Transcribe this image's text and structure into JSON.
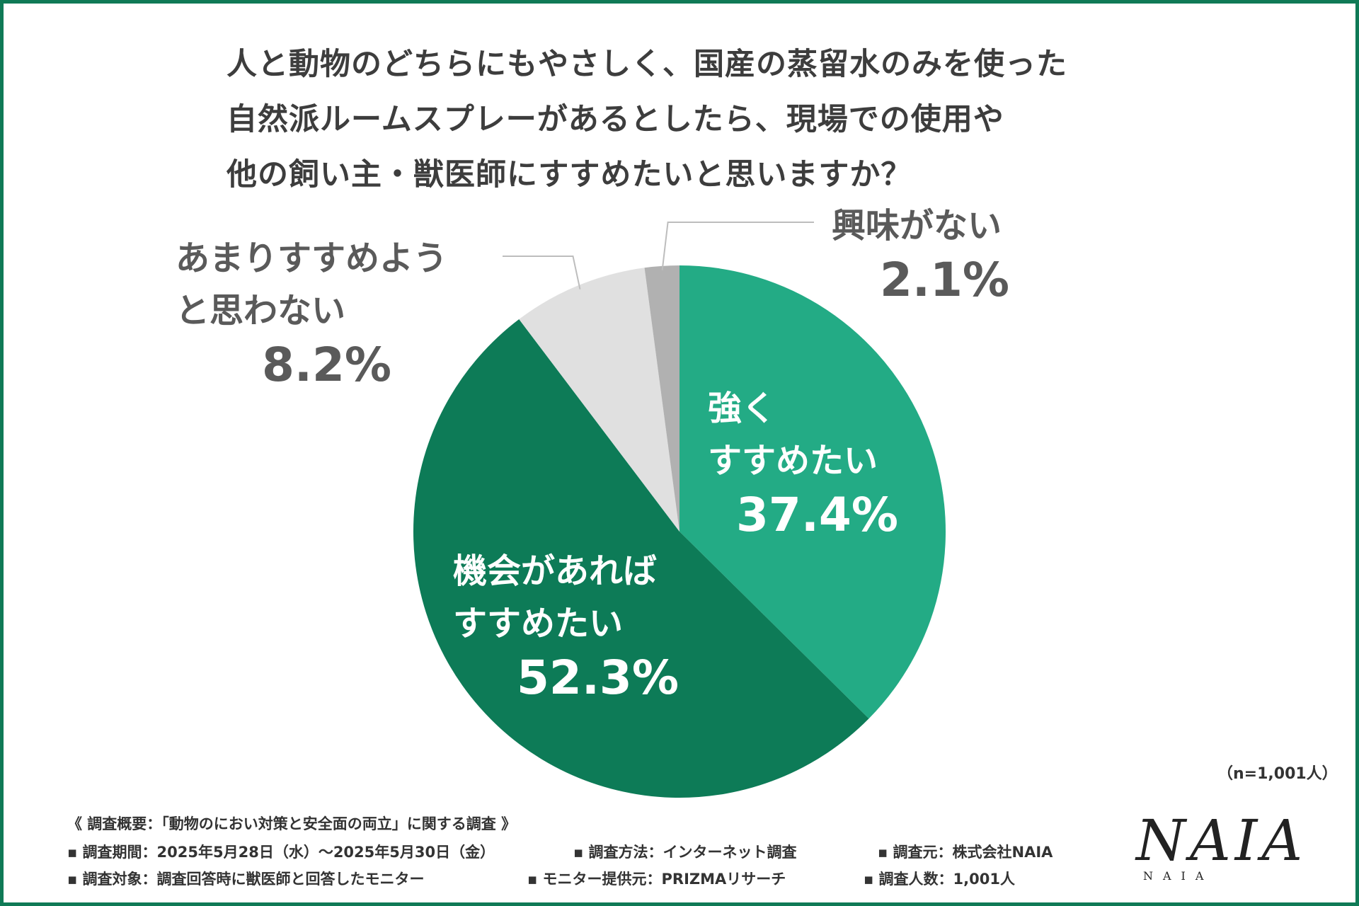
{
  "title_lines": [
    "人と動物のどちらにもやさしく、国産の蒸留水のみを使った",
    "自然派ルームスプレーがあるとしたら、現場での使用や",
    "他の飼い主・獣医師にすすめたいと思いますか？"
  ],
  "chart_data": {
    "type": "pie",
    "title": "人と動物のどちらにもやさしく、国産の蒸留水のみを使った自然派ルームスプレーがあるとしたら、現場での使用や他の飼い主・獣医師にすすめたいと思いますか？",
    "unit": "%",
    "start": "12 o'clock, clockwise",
    "slices": [
      {
        "label_lines": [
          "強く",
          "すすめたい"
        ],
        "value": 37.4,
        "value_label": "37.4%",
        "color": "#23ab85"
      },
      {
        "label_lines": [
          "機会があれば",
          "すすめたい"
        ],
        "value": 52.3,
        "value_label": "52.3%",
        "color": "#0d7b57"
      },
      {
        "label_lines": [
          "あまりすすめよう",
          "と思わない"
        ],
        "value": 8.2,
        "value_label": "8.2%",
        "color": "#e0e0e0"
      },
      {
        "label_lines": [
          "興味がない"
        ],
        "value": 2.1,
        "value_label": "2.1%",
        "color": "#b1b1b1"
      }
    ],
    "sample_size": "（n=1,001人）"
  },
  "footnotes": {
    "overview": "《 調査概要：「動物のにおい対策と安全面の両立」に関する調査 》",
    "period": "▪ 調査期間：2025年5月28日（水）〜2025年5月30日（金）",
    "method": "▪ 調査方法：インターネット調査",
    "source": "▪ 調査元：株式会社NAIA",
    "target": "▪ 調査対象：調査回答時に獣医師と回答したモニター",
    "provider": "▪ モニター提供元：PRIZMAリサーチ",
    "count": "▪ 調査人数：1,001人"
  },
  "logo": {
    "mark": "NAIA",
    "sub": "NAIA"
  },
  "colors": {
    "border": "#0f7a56",
    "leader_line": "#bdbdbd"
  }
}
